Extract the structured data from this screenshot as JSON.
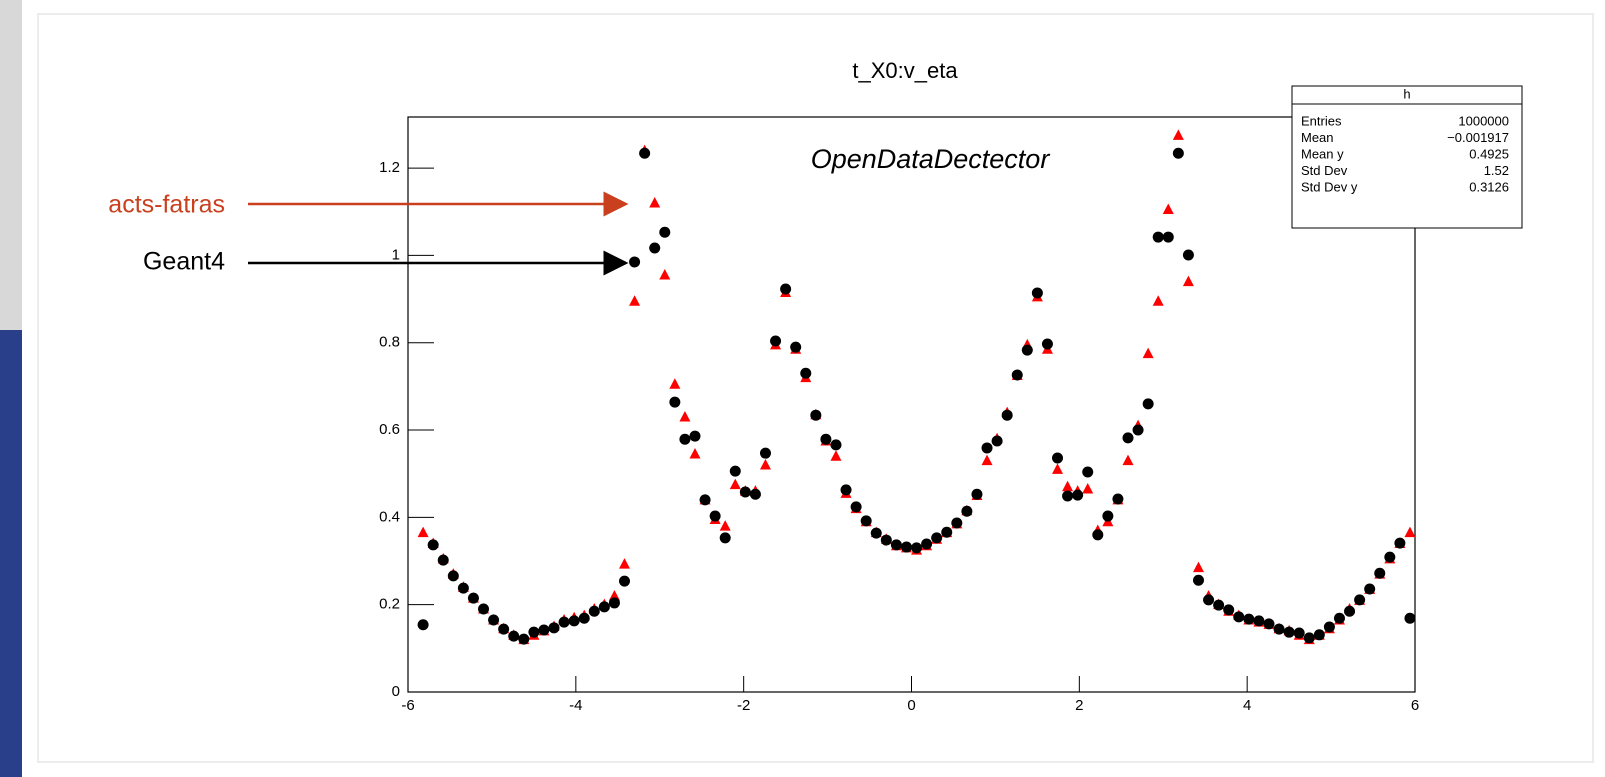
{
  "chart_data": {
    "type": "scatter",
    "title": "t_X0:v_eta",
    "annotation": "OpenDataDectector",
    "x": [
      -5.82,
      -5.7,
      -5.58,
      -5.46,
      -5.34,
      -5.22,
      -5.1,
      -4.98,
      -4.86,
      -4.74,
      -4.62,
      -4.5,
      -4.38,
      -4.26,
      -4.14,
      -4.02,
      -3.9,
      -3.78,
      -3.66,
      -3.54,
      -3.42,
      -3.3,
      -3.18,
      -3.06,
      -2.94,
      -2.82,
      -2.7,
      -2.58,
      -2.46,
      -2.34,
      -2.22,
      -2.1,
      -1.98,
      -1.86,
      -1.74,
      -1.62,
      -1.5,
      -1.38,
      -1.26,
      -1.14,
      -1.02,
      -0.9,
      -0.78,
      -0.66,
      -0.54,
      -0.42,
      -0.3,
      -0.18,
      -0.06,
      0.06,
      0.18,
      0.3,
      0.42,
      0.54,
      0.66,
      0.78,
      0.9,
      1.02,
      1.14,
      1.26,
      1.38,
      1.5,
      1.62,
      1.74,
      1.86,
      1.98,
      2.1,
      2.22,
      2.34,
      2.46,
      2.58,
      2.7,
      2.82,
      2.94,
      3.06,
      3.18,
      3.3,
      3.42,
      3.54,
      3.66,
      3.78,
      3.9,
      4.02,
      4.14,
      4.26,
      4.38,
      4.5,
      4.62,
      4.74,
      4.86,
      4.98,
      5.1,
      5.22,
      5.34,
      5.46,
      5.58,
      5.7,
      5.82,
      5.94
    ],
    "series": [
      {
        "name": "acts-fatras",
        "color": "#ff0000",
        "label_color": "#c8401e",
        "marker": "triangle",
        "values": [
          0.365,
          0.34,
          0.305,
          0.27,
          0.24,
          0.215,
          0.19,
          0.165,
          0.145,
          0.13,
          0.12,
          0.13,
          0.14,
          0.15,
          0.165,
          0.17,
          0.175,
          0.19,
          0.2,
          0.22,
          0.293,
          0.895,
          1.24,
          1.12,
          0.955,
          0.705,
          0.63,
          0.545,
          0.44,
          0.395,
          0.38,
          0.475,
          0.46,
          0.46,
          0.52,
          0.795,
          0.915,
          0.785,
          0.72,
          0.635,
          0.575,
          0.54,
          0.455,
          0.42,
          0.39,
          0.365,
          0.35,
          0.335,
          0.33,
          0.325,
          0.335,
          0.35,
          0.365,
          0.385,
          0.415,
          0.45,
          0.53,
          0.58,
          0.64,
          0.725,
          0.795,
          0.905,
          0.785,
          0.51,
          0.47,
          0.46,
          0.465,
          0.37,
          0.39,
          0.44,
          0.53,
          0.61,
          0.775,
          0.895,
          1.105,
          1.275,
          0.94,
          0.285,
          0.22,
          0.2,
          0.185,
          0.175,
          0.165,
          0.16,
          0.155,
          0.145,
          0.14,
          0.13,
          0.12,
          0.13,
          0.145,
          0.165,
          0.19,
          0.21,
          0.235,
          0.27,
          0.305,
          0.34,
          0.365
        ]
      },
      {
        "name": "Geant4",
        "color": "#000000",
        "label_color": "#000000",
        "marker": "circle",
        "values": [
          0.154,
          0.337,
          0.302,
          0.266,
          0.238,
          0.215,
          0.19,
          0.165,
          0.144,
          0.128,
          0.121,
          0.137,
          0.142,
          0.147,
          0.16,
          0.163,
          0.169,
          0.185,
          0.195,
          0.204,
          0.254,
          0.985,
          1.234,
          1.017,
          1.053,
          0.664,
          0.579,
          0.586,
          0.44,
          0.403,
          0.353,
          0.506,
          0.458,
          0.453,
          0.547,
          0.804,
          0.923,
          0.79,
          0.73,
          0.634,
          0.579,
          0.566,
          0.463,
          0.424,
          0.392,
          0.364,
          0.348,
          0.337,
          0.332,
          0.33,
          0.339,
          0.353,
          0.366,
          0.387,
          0.414,
          0.453,
          0.559,
          0.575,
          0.634,
          0.726,
          0.783,
          0.914,
          0.797,
          0.536,
          0.449,
          0.451,
          0.504,
          0.36,
          0.403,
          0.442,
          0.582,
          0.6,
          0.66,
          1.042,
          1.042,
          1.234,
          1.001,
          0.256,
          0.211,
          0.199,
          0.188,
          0.172,
          0.167,
          0.163,
          0.156,
          0.144,
          0.137,
          0.135,
          0.124,
          0.131,
          0.149,
          0.169,
          0.185,
          0.211,
          0.236,
          0.272,
          0.309,
          0.341,
          0.169
        ]
      }
    ],
    "xlim": [
      -6,
      6
    ],
    "ylim": [
      0,
      1.317
    ],
    "xticks": [
      -6,
      -4,
      -2,
      0,
      2,
      4,
      6
    ],
    "yticks": [
      0,
      0.2,
      0.4,
      0.6,
      0.8,
      1,
      1.2
    ],
    "stats": {
      "title": "h",
      "rows": [
        {
          "label": "Entries",
          "value": "1000000"
        },
        {
          "label": "Mean",
          "value": "−0.001917"
        },
        {
          "label": "Mean y",
          "value": "0.4925"
        },
        {
          "label": "Std Dev",
          "value": "1.52"
        },
        {
          "label": "Std Dev y",
          "value": "0.3126"
        }
      ]
    }
  }
}
